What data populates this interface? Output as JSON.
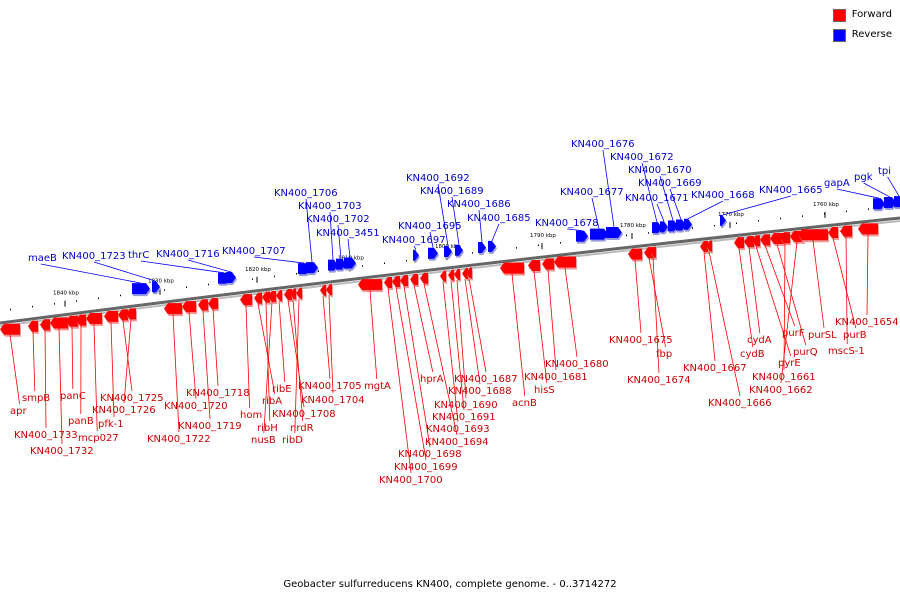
{
  "legend": {
    "forward": {
      "label": "Forward",
      "color": "#ff0000"
    },
    "reverse": {
      "label": "Reverse",
      "color": "#0000ff"
    }
  },
  "colors": {
    "forward_label": "#cc0000",
    "reverse_label": "#0000cc",
    "backbone": "#888888"
  },
  "caption": "Geobacter sulfurreducens KN400, complete genome. - 0..3714272",
  "ticks": [
    "1840 kbp",
    "1830 kbp",
    "1820 kbp",
    "1810 kbp",
    "1800 kbp",
    "1790 kbp",
    "1780 kbp",
    "1770 kbp",
    "1760 kbp"
  ],
  "reverse_genes": [
    "maeB",
    "KN400_1723",
    "thrC",
    "KN400_1716",
    "KN400_1707",
    "KN400_1706",
    "KN400_1703",
    "KN400_1702",
    "KN400_3451",
    "KN400_1697",
    "KN400_1695",
    "KN400_1692",
    "KN400_1689",
    "KN400_1686",
    "KN400_1685",
    "KN400_1678",
    "KN400_1677",
    "KN400_1676",
    "KN400_1672",
    "KN400_1671",
    "KN400_1670",
    "KN400_1669",
    "KN400_1668",
    "KN400_1665",
    "gapA",
    "pgk",
    "tpi"
  ],
  "forward_genes": [
    "apr",
    "smpB",
    "KN400_1733",
    "KN400_1732",
    "panC",
    "panB",
    "mcp027",
    "pfk-1",
    "KN400_1725",
    "KN400_1726",
    "KN400_1722",
    "KN400_1720",
    "KN400_1719",
    "KN400_1718",
    "hom",
    "ribA",
    "ribH",
    "nusB",
    "ribE",
    "KN400_1708",
    "nrdR",
    "ribD",
    "KN400_1705",
    "KN400_1704",
    "mgtA",
    "KN400_1700",
    "KN400_1699",
    "KN400_1698",
    "hprA",
    "KN400_1694",
    "KN400_1693",
    "KN400_1691",
    "KN400_1690",
    "KN400_1688",
    "KN400_1687",
    "acnB",
    "hisS",
    "KN400_1681",
    "KN400_1680",
    "KN400_1675",
    "fbp",
    "KN400_1674",
    "KN400_1667",
    "KN400_1666",
    "cydB",
    "cydA",
    "pyrE",
    "purF",
    "purQ",
    "KN400_1661",
    "KN400_1662",
    "purSL",
    "purB",
    "mscS-1",
    "KN400_1654"
  ]
}
